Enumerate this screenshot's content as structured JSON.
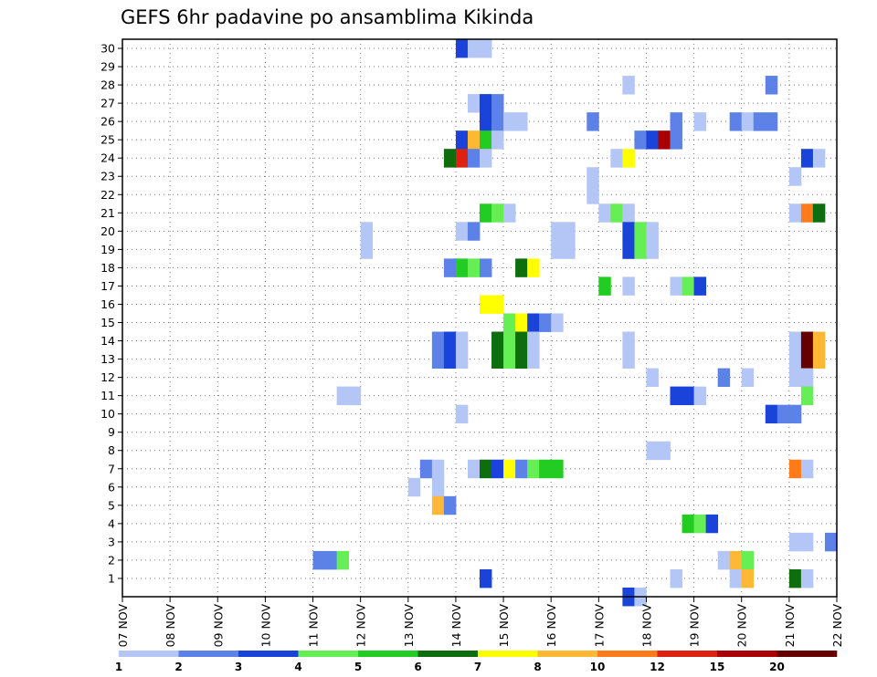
{
  "chart_data": {
    "type": "heatmap",
    "title": "GEFS 6hr padavine po ansamblima Kikinda",
    "xlabel": "",
    "ylabel": "",
    "x_tick_labels": [
      "07 NOV",
      "08 NOV",
      "09 NOV",
      "10 NOV",
      "11 NOV",
      "12 NOV",
      "13 NOV",
      "14 NOV",
      "15 NOV",
      "16 NOV",
      "17 NOV",
      "18 NOV",
      "19 NOV",
      "20 NOV",
      "21 NOV",
      "22 NOV"
    ],
    "x_range_days": [
      0,
      15
    ],
    "y_range": [
      0,
      30
    ],
    "y_ticks": [
      1,
      2,
      3,
      4,
      5,
      6,
      7,
      8,
      9,
      10,
      11,
      12,
      13,
      14,
      15,
      16,
      17,
      18,
      19,
      20,
      21,
      22,
      23,
      24,
      25,
      26,
      27,
      28,
      29,
      30
    ],
    "grid": true,
    "cell_hours": 6,
    "legend": {
      "placement": "bottom",
      "labels": [
        "1",
        "2",
        "3",
        "4",
        "5",
        "6",
        "7",
        "8",
        "10",
        "12",
        "15",
        "20"
      ],
      "colors": [
        "#b3c6f5",
        "#5c82e8",
        "#1a44d9",
        "#66ee55",
        "#22cc22",
        "#0e6e0e",
        "#ffff00",
        "#ffb833",
        "#ff7a1a",
        "#dd2211",
        "#aa0000",
        "#660000"
      ]
    },
    "levels": [
      1,
      2,
      3,
      4,
      5,
      6,
      7,
      8,
      10,
      12,
      15,
      20
    ],
    "cells": [
      {
        "member": 30,
        "t": 7,
        "level": 3
      },
      {
        "member": 30,
        "t": 7.25,
        "level": 1
      },
      {
        "member": 30,
        "t": 7.5,
        "level": 1
      },
      {
        "member": 28,
        "t": 10.5,
        "level": 1
      },
      {
        "member": 28,
        "t": 13.5,
        "level": 2
      },
      {
        "member": 27,
        "t": 7.25,
        "level": 1
      },
      {
        "member": 27,
        "t": 7.5,
        "level": 3
      },
      {
        "member": 27,
        "t": 7.75,
        "level": 2
      },
      {
        "member": 26,
        "t": 7.5,
        "level": 3
      },
      {
        "member": 26,
        "t": 7.75,
        "level": 2
      },
      {
        "member": 26,
        "t": 8,
        "level": 1
      },
      {
        "member": 26,
        "t": 8.25,
        "level": 1
      },
      {
        "member": 26,
        "t": 9.75,
        "level": 2
      },
      {
        "member": 26,
        "t": 11.5,
        "level": 2
      },
      {
        "member": 26,
        "t": 12,
        "level": 1
      },
      {
        "member": 26,
        "t": 12.75,
        "level": 2
      },
      {
        "member": 26,
        "t": 13,
        "level": 1
      },
      {
        "member": 26,
        "t": 13.25,
        "level": 2
      },
      {
        "member": 26,
        "t": 13.5,
        "level": 2
      },
      {
        "member": 25,
        "t": 7,
        "level": 3
      },
      {
        "member": 25,
        "t": 7.25,
        "level": 8
      },
      {
        "member": 25,
        "t": 7.5,
        "level": 5
      },
      {
        "member": 25,
        "t": 7.75,
        "level": 1
      },
      {
        "member": 25,
        "t": 10.75,
        "level": 2
      },
      {
        "member": 25,
        "t": 11,
        "level": 3
      },
      {
        "member": 25,
        "t": 11.25,
        "level": 15
      },
      {
        "member": 25,
        "t": 11.5,
        "level": 2
      },
      {
        "member": 24,
        "t": 6.75,
        "level": 6
      },
      {
        "member": 24,
        "t": 7,
        "level": 12
      },
      {
        "member": 24,
        "t": 7.25,
        "level": 2
      },
      {
        "member": 24,
        "t": 7.5,
        "level": 1
      },
      {
        "member": 24,
        "t": 10.25,
        "level": 1
      },
      {
        "member": 24,
        "t": 10.5,
        "level": 7
      },
      {
        "member": 24,
        "t": 14.25,
        "level": 3
      },
      {
        "member": 24,
        "t": 14.5,
        "level": 1
      },
      {
        "member": 23,
        "t": 9.75,
        "level": 1
      },
      {
        "member": 23,
        "t": 14,
        "level": 1
      },
      {
        "member": 22,
        "t": 9.75,
        "level": 1
      },
      {
        "member": 21,
        "t": 7.5,
        "level": 5
      },
      {
        "member": 21,
        "t": 7.75,
        "level": 4
      },
      {
        "member": 21,
        "t": 8,
        "level": 1
      },
      {
        "member": 21,
        "t": 10,
        "level": 1
      },
      {
        "member": 21,
        "t": 10.25,
        "level": 4
      },
      {
        "member": 21,
        "t": 10.5,
        "level": 1
      },
      {
        "member": 21,
        "t": 14,
        "level": 1
      },
      {
        "member": 21,
        "t": 14.25,
        "level": 10
      },
      {
        "member": 21,
        "t": 14.5,
        "level": 6
      },
      {
        "member": 20,
        "t": 5,
        "level": 1
      },
      {
        "member": 20,
        "t": 7,
        "level": 1
      },
      {
        "member": 20,
        "t": 7.25,
        "level": 2
      },
      {
        "member": 20,
        "t": 9,
        "level": 1
      },
      {
        "member": 20,
        "t": 9.25,
        "level": 1
      },
      {
        "member": 20,
        "t": 10.5,
        "level": 3
      },
      {
        "member": 20,
        "t": 10.75,
        "level": 4
      },
      {
        "member": 20,
        "t": 11,
        "level": 1
      },
      {
        "member": 19,
        "t": 5,
        "level": 1
      },
      {
        "member": 19,
        "t": 9,
        "level": 1
      },
      {
        "member": 19,
        "t": 9.25,
        "level": 1
      },
      {
        "member": 19,
        "t": 10.5,
        "level": 3
      },
      {
        "member": 19,
        "t": 10.75,
        "level": 4
      },
      {
        "member": 19,
        "t": 11,
        "level": 1
      },
      {
        "member": 18,
        "t": 6.75,
        "level": 2
      },
      {
        "member": 18,
        "t": 7,
        "level": 5
      },
      {
        "member": 18,
        "t": 7.25,
        "level": 4
      },
      {
        "member": 18,
        "t": 7.5,
        "level": 2
      },
      {
        "member": 18,
        "t": 8.25,
        "level": 6
      },
      {
        "member": 18,
        "t": 8.5,
        "level": 7
      },
      {
        "member": 17,
        "t": 10,
        "level": 5
      },
      {
        "member": 17,
        "t": 10.5,
        "level": 1
      },
      {
        "member": 17,
        "t": 11.5,
        "level": 1
      },
      {
        "member": 17,
        "t": 11.75,
        "level": 4
      },
      {
        "member": 17,
        "t": 12,
        "level": 3
      },
      {
        "member": 16,
        "t": 7.5,
        "level": 7
      },
      {
        "member": 16,
        "t": 7.75,
        "level": 7
      },
      {
        "member": 15,
        "t": 8,
        "level": 4
      },
      {
        "member": 15,
        "t": 8.25,
        "level": 7
      },
      {
        "member": 15,
        "t": 8.5,
        "level": 3
      },
      {
        "member": 15,
        "t": 8.75,
        "level": 2
      },
      {
        "member": 15,
        "t": 9,
        "level": 1
      },
      {
        "member": 14,
        "t": 6.5,
        "level": 2
      },
      {
        "member": 14,
        "t": 6.75,
        "level": 3
      },
      {
        "member": 14,
        "t": 7,
        "level": 1
      },
      {
        "member": 14,
        "t": 7.75,
        "level": 6
      },
      {
        "member": 14,
        "t": 8,
        "level": 4
      },
      {
        "member": 14,
        "t": 8.25,
        "level": 6
      },
      {
        "member": 14,
        "t": 8.5,
        "level": 1
      },
      {
        "member": 14,
        "t": 10.5,
        "level": 1
      },
      {
        "member": 14,
        "t": 14,
        "level": 1
      },
      {
        "member": 14,
        "t": 14.25,
        "level": 20
      },
      {
        "member": 14,
        "t": 14.5,
        "level": 8
      },
      {
        "member": 13,
        "t": 6.5,
        "level": 2
      },
      {
        "member": 13,
        "t": 6.75,
        "level": 3
      },
      {
        "member": 13,
        "t": 7,
        "level": 1
      },
      {
        "member": 13,
        "t": 7.75,
        "level": 6
      },
      {
        "member": 13,
        "t": 8,
        "level": 4
      },
      {
        "member": 13,
        "t": 8.25,
        "level": 6
      },
      {
        "member": 13,
        "t": 8.5,
        "level": 1
      },
      {
        "member": 13,
        "t": 10.5,
        "level": 1
      },
      {
        "member": 13,
        "t": 14,
        "level": 1
      },
      {
        "member": 13,
        "t": 14.25,
        "level": 20
      },
      {
        "member": 13,
        "t": 14.5,
        "level": 8
      },
      {
        "member": 12,
        "t": 11,
        "level": 1
      },
      {
        "member": 12,
        "t": 12.5,
        "level": 2
      },
      {
        "member": 12,
        "t": 13,
        "level": 1
      },
      {
        "member": 12,
        "t": 14,
        "level": 1
      },
      {
        "member": 12,
        "t": 14.25,
        "level": 1
      },
      {
        "member": 11,
        "t": 4.5,
        "level": 1
      },
      {
        "member": 11,
        "t": 4.75,
        "level": 1
      },
      {
        "member": 11,
        "t": 11.5,
        "level": 3
      },
      {
        "member": 11,
        "t": 11.75,
        "level": 3
      },
      {
        "member": 11,
        "t": 12,
        "level": 1
      },
      {
        "member": 11,
        "t": 14.25,
        "level": 4
      },
      {
        "member": 10,
        "t": 7,
        "level": 1
      },
      {
        "member": 10,
        "t": 13.5,
        "level": 3
      },
      {
        "member": 10,
        "t": 13.75,
        "level": 2
      },
      {
        "member": 10,
        "t": 14,
        "level": 2
      },
      {
        "member": 8,
        "t": 11,
        "level": 1
      },
      {
        "member": 8,
        "t": 11.25,
        "level": 1
      },
      {
        "member": 7,
        "t": 6.25,
        "level": 2
      },
      {
        "member": 7,
        "t": 6.5,
        "level": 1
      },
      {
        "member": 7,
        "t": 7.25,
        "level": 1
      },
      {
        "member": 7,
        "t": 7.5,
        "level": 6
      },
      {
        "member": 7,
        "t": 7.75,
        "level": 3
      },
      {
        "member": 7,
        "t": 8,
        "level": 7
      },
      {
        "member": 7,
        "t": 8.25,
        "level": 2
      },
      {
        "member": 7,
        "t": 8.5,
        "level": 4
      },
      {
        "member": 7,
        "t": 8.75,
        "level": 5
      },
      {
        "member": 7,
        "t": 9,
        "level": 5
      },
      {
        "member": 7,
        "t": 14,
        "level": 10
      },
      {
        "member": 7,
        "t": 14.25,
        "level": 1
      },
      {
        "member": 6,
        "t": 6,
        "level": 1
      },
      {
        "member": 6,
        "t": 6.5,
        "level": 1
      },
      {
        "member": 5,
        "t": 6.5,
        "level": 8
      },
      {
        "member": 5,
        "t": 6.75,
        "level": 2
      },
      {
        "member": 4,
        "t": 11.75,
        "level": 5
      },
      {
        "member": 4,
        "t": 12,
        "level": 4
      },
      {
        "member": 4,
        "t": 12.25,
        "level": 3
      },
      {
        "member": 3,
        "t": 14,
        "level": 1
      },
      {
        "member": 3,
        "t": 14.25,
        "level": 1
      },
      {
        "member": 3,
        "t": 14.75,
        "level": 2
      },
      {
        "member": 2,
        "t": 4,
        "level": 2
      },
      {
        "member": 2,
        "t": 4.25,
        "level": 2
      },
      {
        "member": 2,
        "t": 4.5,
        "level": 4
      },
      {
        "member": 2,
        "t": 12.5,
        "level": 1
      },
      {
        "member": 2,
        "t": 12.75,
        "level": 8
      },
      {
        "member": 2,
        "t": 13,
        "level": 4
      },
      {
        "member": 1,
        "t": 7.5,
        "level": 3
      },
      {
        "member": 1,
        "t": 11.5,
        "level": 1
      },
      {
        "member": 1,
        "t": 12.75,
        "level": 1
      },
      {
        "member": 1,
        "t": 13,
        "level": 8
      },
      {
        "member": 1,
        "t": 14,
        "level": 6
      },
      {
        "member": 1,
        "t": 14.25,
        "level": 1
      },
      {
        "member": 0,
        "t": 10.5,
        "level": 3
      },
      {
        "member": 0,
        "t": 10.75,
        "level": 1
      }
    ]
  }
}
